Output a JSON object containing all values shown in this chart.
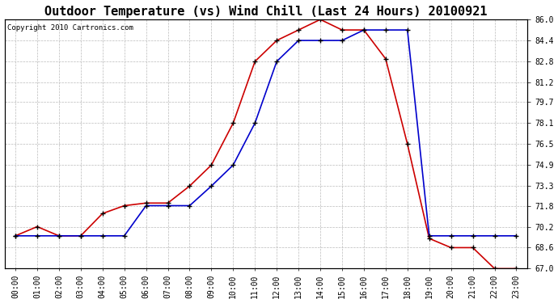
{
  "title": "Outdoor Temperature (vs) Wind Chill (Last 24 Hours) 20100921",
  "copyright": "Copyright 2010 Cartronics.com",
  "hours": [
    "00:00",
    "01:00",
    "02:00",
    "03:00",
    "04:00",
    "05:00",
    "06:00",
    "07:00",
    "08:00",
    "09:00",
    "10:00",
    "11:00",
    "12:00",
    "13:00",
    "14:00",
    "15:00",
    "16:00",
    "17:00",
    "18:00",
    "19:00",
    "20:00",
    "21:00",
    "22:00",
    "23:00"
  ],
  "temp": [
    69.5,
    70.2,
    69.5,
    69.5,
    71.2,
    71.8,
    72.0,
    72.0,
    73.3,
    74.9,
    78.1,
    82.8,
    84.4,
    85.2,
    86.0,
    85.2,
    85.2,
    83.0,
    76.5,
    69.3,
    68.6,
    68.6,
    67.0,
    67.0
  ],
  "windchill": [
    69.5,
    69.5,
    69.5,
    69.5,
    69.5,
    69.5,
    71.8,
    71.8,
    71.8,
    73.3,
    74.9,
    78.1,
    82.8,
    84.4,
    84.4,
    84.4,
    85.2,
    85.2,
    85.2,
    69.5,
    69.5,
    69.5,
    69.5,
    69.5
  ],
  "temp_color": "#cc0000",
  "windchill_color": "#0000cc",
  "ylim_min": 67.0,
  "ylim_max": 86.0,
  "yticks": [
    67.0,
    68.6,
    70.2,
    71.8,
    73.3,
    74.9,
    76.5,
    78.1,
    79.7,
    81.2,
    82.8,
    84.4,
    86.0
  ],
  "bg_color": "#ffffff",
  "grid_color": "#bbbbbb",
  "title_fontsize": 11,
  "copyright_fontsize": 6.5,
  "tick_fontsize": 7
}
